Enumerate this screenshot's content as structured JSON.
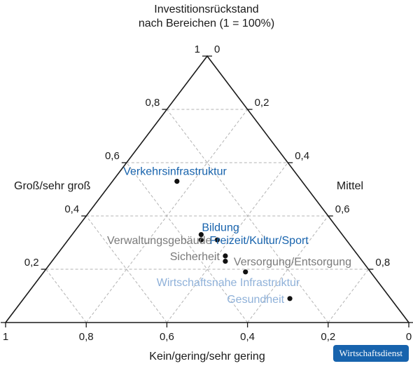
{
  "chart_data": {
    "type": "scatter",
    "subtype": "ternary",
    "title_line1": "Investitionsrückstand",
    "title_line2": "nach Bereichen (1 = 100%)",
    "axis_left_label": "Groß/sehr groß",
    "axis_right_label": "Mittel",
    "axis_bottom_label": "Kein/gering/sehr gering",
    "grid": true,
    "left_ticks": [
      "0",
      "0,2",
      "0,4",
      "0,6",
      "0,8",
      "1"
    ],
    "right_ticks": [
      "0",
      "0,2",
      "0,4",
      "0,6",
      "0,8",
      "1"
    ],
    "bottom_ticks": [
      "1",
      "0,8",
      "0,6",
      "0,4",
      "0,2",
      "0"
    ],
    "colors": {
      "axis": "#1a1a1a",
      "grid": "#b3b3b3",
      "dot": "#111111",
      "label_gray": "#7a7a7a",
      "label_blue": "#1763ad",
      "label_lightblue": "#8fb1d9"
    },
    "points": [
      {
        "name": "Verkehrsinfrastruktur",
        "gross": 0.53,
        "mittel": 0.31,
        "kein": 0.16,
        "label_color": "blue",
        "label_pos": "above-left"
      },
      {
        "name": "Bildung",
        "gross": 0.33,
        "mittel": 0.35,
        "kein": 0.32,
        "label_color": "blue",
        "label_pos": "above-right"
      },
      {
        "name": "Freizeit/Kultur/Sport",
        "gross": 0.31,
        "mittel": 0.36,
        "kein": 0.33,
        "label_color": "blue",
        "label_pos": "right"
      },
      {
        "name": "Verwaltungsgebäude",
        "gross": 0.31,
        "mittel": 0.32,
        "kein": 0.37,
        "label_color": "gray",
        "label_pos": "left"
      },
      {
        "name": "Sicherheit",
        "gross": 0.25,
        "mittel": 0.33,
        "kein": 0.42,
        "label_color": "gray",
        "label_pos": "left"
      },
      {
        "name": "Versorgung/Entsorgung",
        "gross": 0.23,
        "mittel": 0.34,
        "kein": 0.43,
        "label_color": "gray",
        "label_pos": "right"
      },
      {
        "name": "Wirtschaftsnahe Infrastruktur",
        "gross": 0.19,
        "mittel": 0.31,
        "kein": 0.5,
        "label_color": "lightblue",
        "label_pos": "below"
      },
      {
        "name": "Gesundheit",
        "gross": 0.09,
        "mittel": 0.25,
        "kein": 0.66,
        "label_color": "lightblue",
        "label_pos": "left"
      }
    ]
  },
  "brand": {
    "label": "Wirtschaftsdienst"
  }
}
